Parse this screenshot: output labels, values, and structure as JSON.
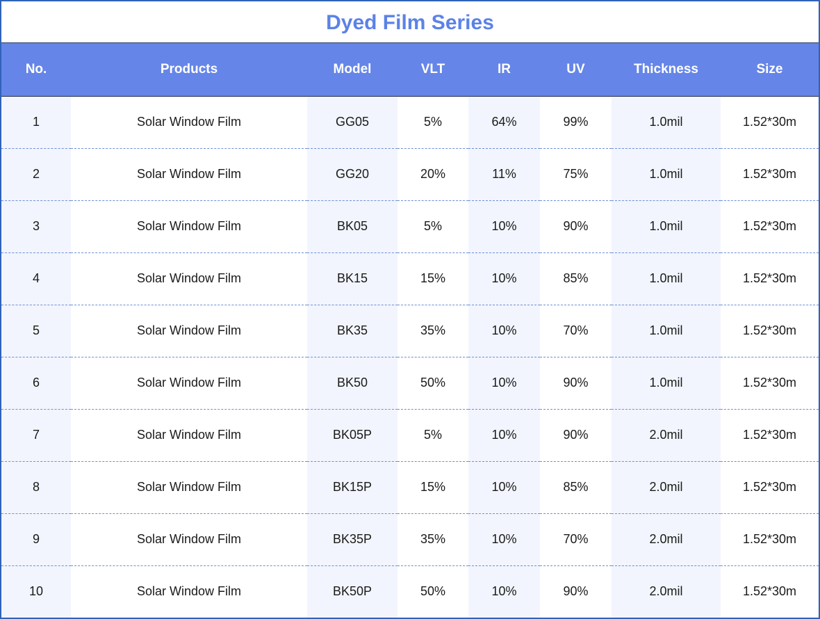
{
  "title": "Dyed Film Series",
  "colors": {
    "title": "#5b82e6",
    "header_bg": "#6585e8",
    "border": "#2f63b8",
    "stripe": "#f2f5fd"
  },
  "columns": [
    "No.",
    "Products",
    "Model",
    "VLT",
    "IR",
    "UV",
    "Thickness",
    "Size"
  ],
  "rows": [
    [
      "1",
      "Solar Window Film",
      "GG05",
      "5%",
      "64%",
      "99%",
      "1.0mil",
      "1.52*30m"
    ],
    [
      "2",
      "Solar Window Film",
      "GG20",
      "20%",
      "11%",
      "75%",
      "1.0mil",
      "1.52*30m"
    ],
    [
      "3",
      "Solar Window Film",
      "BK05",
      "5%",
      "10%",
      "90%",
      "1.0mil",
      "1.52*30m"
    ],
    [
      "4",
      "Solar Window Film",
      "BK15",
      "15%",
      "10%",
      "85%",
      "1.0mil",
      "1.52*30m"
    ],
    [
      "5",
      "Solar Window Film",
      "BK35",
      "35%",
      "10%",
      "70%",
      "1.0mil",
      "1.52*30m"
    ],
    [
      "6",
      "Solar Window Film",
      "BK50",
      "50%",
      "10%",
      "90%",
      "1.0mil",
      "1.52*30m"
    ],
    [
      "7",
      "Solar Window Film",
      "BK05P",
      "5%",
      "10%",
      "90%",
      "2.0mil",
      "1.52*30m"
    ],
    [
      "8",
      "Solar Window Film",
      "BK15P",
      "15%",
      "10%",
      "85%",
      "2.0mil",
      "1.52*30m"
    ],
    [
      "9",
      "Solar Window Film",
      "BK35P",
      "35%",
      "10%",
      "70%",
      "2.0mil",
      "1.52*30m"
    ],
    [
      "10",
      "Solar Window Film",
      "BK50P",
      "50%",
      "10%",
      "90%",
      "2.0mil",
      "1.52*30m"
    ]
  ]
}
